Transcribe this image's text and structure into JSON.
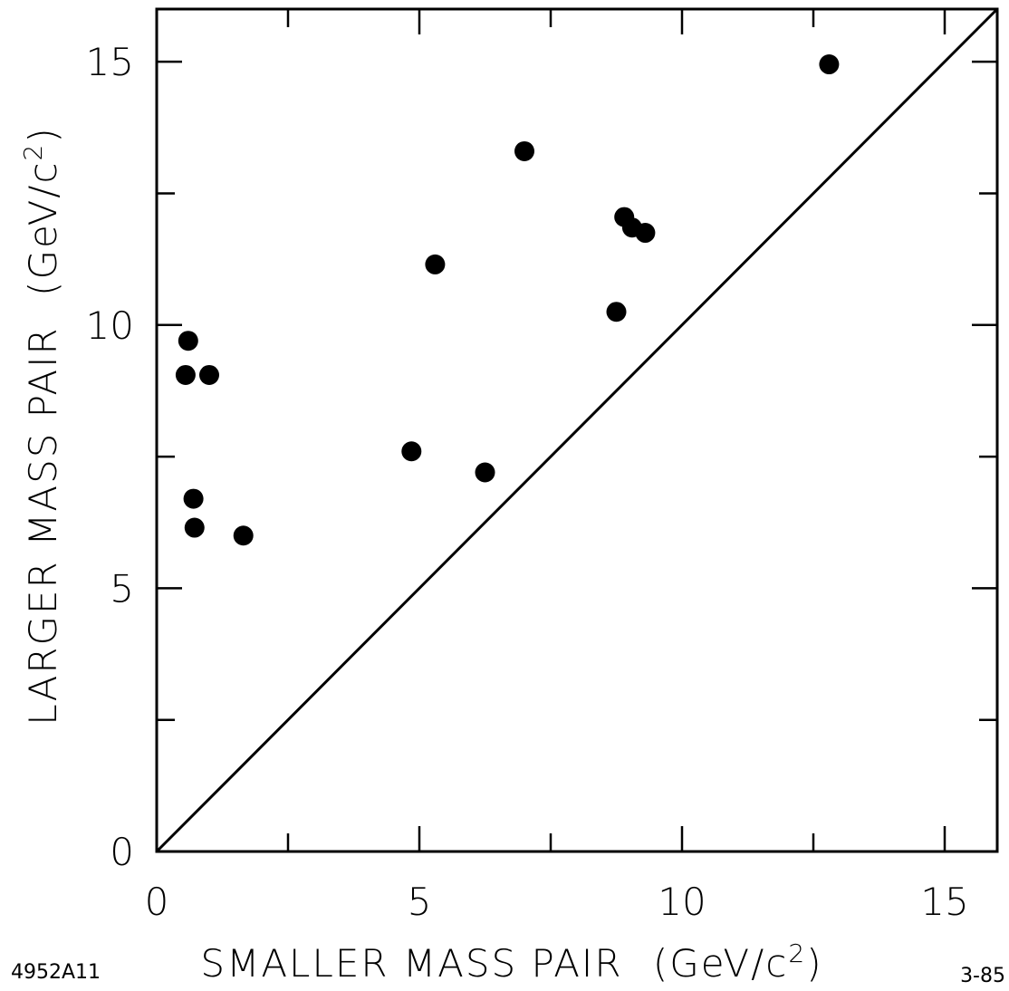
{
  "chart_data": {
    "type": "scatter",
    "xlabel": "SMALLER MASS PAIR",
    "xunit_prefix": "(GeV/c",
    "xunit_sup": "2",
    "xunit_suffix": ")",
    "ylabel": "LARGER MASS PAIR",
    "yunit_prefix": "(GeV/c",
    "yunit_sup": "2",
    "yunit_suffix": ")",
    "xlim": [
      0,
      16
    ],
    "ylim": [
      0,
      16
    ],
    "x_ticks": [
      0,
      5,
      10,
      15
    ],
    "y_ticks": [
      0,
      5,
      10,
      15
    ],
    "x_tick_labels": [
      "0",
      "5",
      "10",
      "15"
    ],
    "y_tick_labels": [
      "0",
      "5",
      "10",
      "15"
    ],
    "minor_tick_step": 2.5,
    "reference_line": {
      "from": [
        0,
        0
      ],
      "to": [
        16,
        16
      ]
    },
    "grid": false,
    "points": [
      {
        "x": 0.6,
        "y": 9.7
      },
      {
        "x": 0.55,
        "y": 9.05
      },
      {
        "x": 1.0,
        "y": 9.05
      },
      {
        "x": 0.7,
        "y": 6.7
      },
      {
        "x": 0.72,
        "y": 6.15
      },
      {
        "x": 1.65,
        "y": 6.0
      },
      {
        "x": 4.85,
        "y": 7.6
      },
      {
        "x": 5.3,
        "y": 11.15
      },
      {
        "x": 6.25,
        "y": 7.2
      },
      {
        "x": 7.0,
        "y": 13.3
      },
      {
        "x": 8.75,
        "y": 10.25
      },
      {
        "x": 8.9,
        "y": 12.05
      },
      {
        "x": 9.05,
        "y": 11.85
      },
      {
        "x": 9.3,
        "y": 11.75
      },
      {
        "x": 12.8,
        "y": 14.95
      }
    ]
  },
  "figure_id": "4952A11",
  "date_code": "3-85"
}
